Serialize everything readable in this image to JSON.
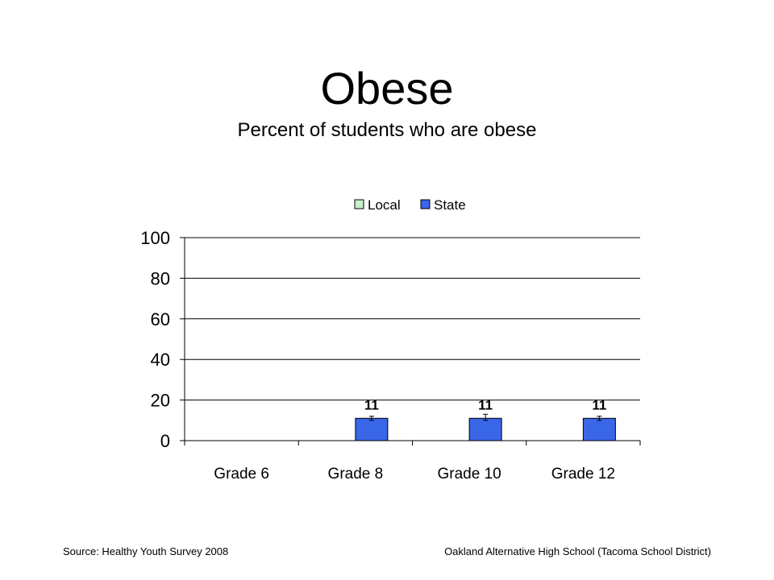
{
  "slide": {
    "title": "Obese",
    "subtitle": "Percent of students who are obese",
    "source": "Source: Healthy Youth Survey 2008",
    "school": "Oakland Alternative High School (Tacoma School District)"
  },
  "colors": {
    "local": "#c8f0c8",
    "state": "#3a66e8",
    "grid": "#000000"
  },
  "chart_data": {
    "type": "bar",
    "categories": [
      "Grade 6",
      "Grade 8",
      "Grade 10",
      "Grade 12"
    ],
    "series": [
      {
        "name": "Local",
        "values": [
          null,
          null,
          null,
          null
        ]
      },
      {
        "name": "State",
        "values": [
          null,
          11,
          11,
          11
        ],
        "error_low": [
          null,
          10,
          10,
          10
        ],
        "error_high": [
          null,
          12,
          13,
          12
        ]
      }
    ],
    "data_labels": [
      null,
      "11",
      "11",
      "11"
    ],
    "yticks": [
      "0",
      "20",
      "40",
      "60",
      "80",
      "100"
    ],
    "ylim": [
      0,
      100
    ],
    "grid": true,
    "legend": "top-center"
  }
}
